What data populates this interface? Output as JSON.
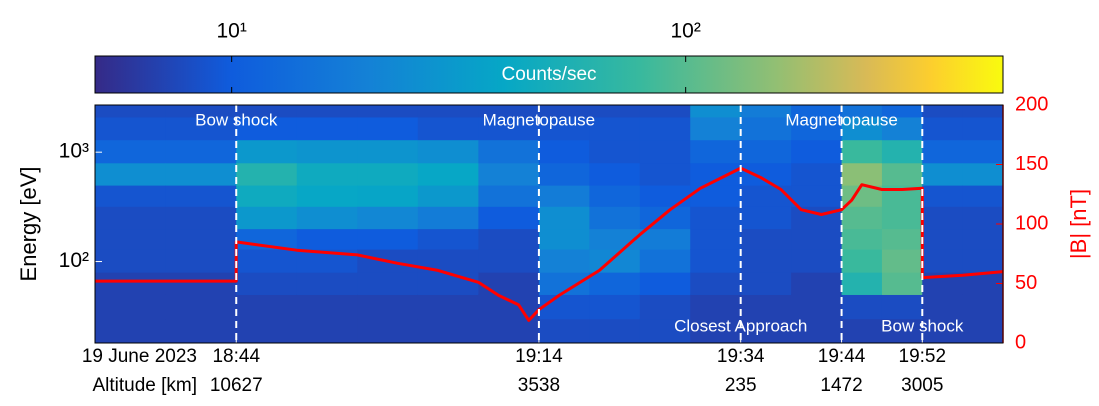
{
  "chart_data": {
    "type": "spectrogram",
    "colorbar": {
      "label": "Counts/sec",
      "clim": [
        5,
        500
      ],
      "log": true,
      "ticks": [
        {
          "value": 10,
          "label": "10¹"
        },
        {
          "value": 100,
          "label": "10²"
        }
      ]
    },
    "ylabel": "Energy [eV]",
    "ylim": [
      18,
      2700
    ],
    "ylog": true,
    "yticks": [
      {
        "value": 100,
        "label": "10²"
      },
      {
        "value": 1000,
        "label": "10³"
      }
    ],
    "y2label": "|B| [nT]",
    "y2lim": [
      0,
      200
    ],
    "y2ticks": [
      0,
      50,
      100,
      150,
      200
    ],
    "y2color": "#ff0000",
    "xlim": [
      "18:30",
      "20:00"
    ],
    "xticks": [
      "18:44",
      "19:14",
      "19:34",
      "19:44",
      "19:52"
    ],
    "date_label": "19 June 2023",
    "altitude_label": "Altitude [km]",
    "altitudes": [
      10627,
      3538,
      235,
      1472,
      3005
    ],
    "events": [
      {
        "time": "18:44",
        "label": "Bow shock",
        "position": "top"
      },
      {
        "time": "19:14",
        "label": "Magnetopause",
        "position": "top"
      },
      {
        "time": "19:34",
        "label": "Closest Approach",
        "position": "bottom"
      },
      {
        "time": "19:44",
        "label": "Magnetopause",
        "position": "top"
      },
      {
        "time": "19:52",
        "label": "Bow shock",
        "position": "bottom"
      }
    ],
    "spectrogram": {
      "time_edges": [
        "18:30",
        "18:37",
        "18:44",
        "18:50",
        "18:56",
        "19:02",
        "19:08",
        "19:14",
        "19:19",
        "19:24",
        "19:29",
        "19:34",
        "19:39",
        "19:44",
        "19:48",
        "19:52",
        "19:56",
        "20:00"
      ],
      "energy_edges": [
        18,
        30,
        50,
        80,
        130,
        200,
        320,
        500,
        800,
        1300,
        2100,
        2700
      ],
      "counts": [
        [
          7,
          7,
          7,
          8,
          8,
          8,
          9,
          25,
          12,
          9,
          8
        ],
        [
          7,
          7,
          7,
          8,
          8,
          8,
          9,
          25,
          12,
          9,
          8
        ],
        [
          7,
          7,
          8,
          9,
          12,
          30,
          45,
          60,
          30,
          10,
          8
        ],
        [
          7,
          7,
          8,
          9,
          10,
          25,
          40,
          45,
          28,
          10,
          8
        ],
        [
          7,
          7,
          8,
          8,
          10,
          22,
          38,
          45,
          28,
          10,
          8
        ],
        [
          7,
          7,
          8,
          8,
          9,
          18,
          30,
          40,
          25,
          9,
          8
        ],
        [
          7,
          7,
          7,
          8,
          8,
          10,
          15,
          20,
          15,
          9,
          8
        ],
        [
          8,
          9,
          15,
          20,
          25,
          25,
          18,
          12,
          10,
          9,
          8
        ],
        [
          8,
          9,
          12,
          22,
          20,
          15,
          12,
          10,
          9,
          9,
          8
        ],
        [
          8,
          8,
          10,
          15,
          18,
          12,
          10,
          9,
          9,
          9,
          8
        ],
        [
          7,
          7,
          8,
          9,
          9,
          9,
          10,
          10,
          12,
          20,
          25
        ],
        [
          7,
          7,
          8,
          8,
          8,
          9,
          9,
          10,
          12,
          15,
          18
        ],
        [
          7,
          7,
          7,
          8,
          8,
          8,
          9,
          9,
          10,
          12,
          12
        ],
        [
          7,
          8,
          60,
          80,
          90,
          100,
          120,
          150,
          80,
          25,
          15
        ],
        [
          7,
          8,
          100,
          110,
          100,
          90,
          90,
          100,
          60,
          20,
          12
        ],
        [
          7,
          7,
          7,
          8,
          8,
          8,
          9,
          25,
          12,
          9,
          8
        ],
        [
          7,
          7,
          7,
          8,
          8,
          8,
          9,
          25,
          12,
          9,
          8
        ]
      ]
    },
    "b_field": {
      "axis": "y2",
      "color": "#ff0000",
      "x": [
        "18:30",
        "18:44",
        "18:44",
        "18:50",
        "18:56",
        "19:00",
        "19:04",
        "19:08",
        "19:10",
        "19:12",
        "19:13",
        "19:14",
        "19:16",
        "19:20",
        "19:24",
        "19:27",
        "19:30",
        "19:34",
        "19:36",
        "19:38",
        "19:40",
        "19:42",
        "19:44",
        "19:45",
        "19:46",
        "19:48",
        "19:50",
        "19:52",
        "19:52",
        "19:56",
        "20:00"
      ],
      "values": [
        52,
        52,
        85,
        78,
        74,
        67,
        61,
        51,
        40,
        32,
        19,
        28,
        40,
        61,
        91,
        112,
        130,
        147,
        139,
        129,
        112,
        108,
        112,
        120,
        133,
        129,
        129,
        130,
        55,
        57,
        60
      ]
    }
  }
}
